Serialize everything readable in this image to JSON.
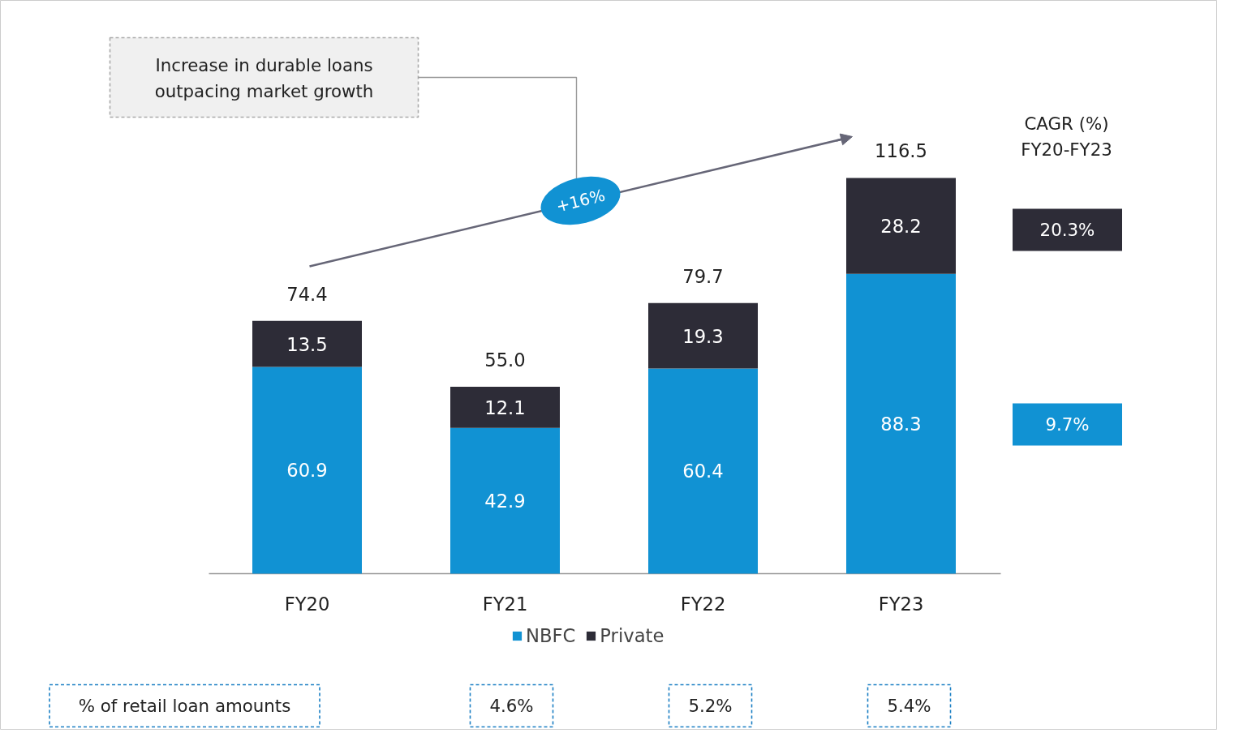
{
  "chart_data": {
    "type": "bar",
    "stacked": true,
    "data_labels": true,
    "legend": "bottom",
    "categories": [
      "FY20",
      "FY21",
      "FY22",
      "FY23"
    ],
    "series": [
      {
        "name": "NBFC",
        "color": "#1192d3",
        "values": [
          60.9,
          42.9,
          60.4,
          88.3
        ]
      },
      {
        "name": "Private",
        "color": "#2d2c37",
        "values": [
          13.5,
          12.1,
          19.3,
          28.2
        ]
      }
    ],
    "totals": [
      "74.4",
      "55.0",
      "79.7",
      "116.5"
    ],
    "annotations": [
      "Increase in durable loans\noutpacing market growth",
      "+16%",
      "CAGR (%)\nFY20-FY23",
      "20.3%",
      "9.7%",
      "% of retail loan amounts",
      "4.6%",
      "5.2%",
      "5.4%"
    ]
  }
}
